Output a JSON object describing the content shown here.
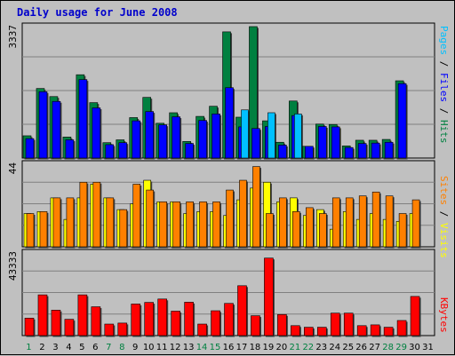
{
  "chart_data": [
    {
      "type": "bar",
      "title": "Daily usage for June 2008",
      "max_label": "3337",
      "ylim": [
        0,
        3337
      ],
      "series_labels": [
        "Pages",
        "Files",
        "Hits"
      ],
      "series_colors": {
        "Pages": "#00c0ff",
        "Files": "#0000ff",
        "Hits": "#008040"
      },
      "categories": [
        "1",
        "2",
        "3",
        "4",
        "5",
        "6",
        "7",
        "8",
        "9",
        "10",
        "11",
        "12",
        "13",
        "14",
        "15",
        "16",
        "17",
        "18",
        "19",
        "20",
        "21",
        "22",
        "23",
        "24",
        "25",
        "26",
        "27",
        "28",
        "29",
        "30",
        "31"
      ],
      "series": [
        {
          "name": "Hits",
          "values": [
            550,
            1720,
            1520,
            520,
            2060,
            1370,
            380,
            450,
            1000,
            1500,
            860,
            1120,
            410,
            1030,
            1280,
            3120,
            1010,
            3250,
            920,
            390,
            1410,
            290,
            840,
            830,
            300,
            440,
            440,
            460,
            1910,
            0,
            0
          ]
        },
        {
          "name": "Files",
          "values": [
            480,
            1640,
            1400,
            450,
            1940,
            1240,
            330,
            380,
            920,
            1150,
            820,
            1020,
            360,
            930,
            1090,
            1740,
            770,
            730,
            780,
            320,
            1050,
            290,
            780,
            770,
            260,
            360,
            370,
            390,
            1840,
            0,
            0
          ]
        },
        {
          "name": "Pages",
          "values": [
            0,
            0,
            0,
            0,
            0,
            0,
            0,
            0,
            0,
            0,
            0,
            0,
            0,
            0,
            0,
            0,
            1190,
            0,
            1120,
            0,
            1090,
            0,
            0,
            0,
            0,
            0,
            0,
            0,
            0,
            0,
            0
          ]
        }
      ]
    },
    {
      "type": "bar",
      "max_label": "44",
      "ylim": [
        0,
        44
      ],
      "series_labels": [
        "Sites",
        "Visits"
      ],
      "series_colors": {
        "Sites": "#ff8000",
        "Visits": "#ffff00"
      },
      "categories": [
        "1",
        "2",
        "3",
        "4",
        "5",
        "6",
        "7",
        "8",
        "9",
        "10",
        "11",
        "12",
        "13",
        "14",
        "15",
        "16",
        "17",
        "18",
        "19",
        "20",
        "21",
        "22",
        "23",
        "24",
        "25",
        "26",
        "27",
        "28",
        "29",
        "30",
        "31"
      ],
      "series": [
        {
          "name": "Visits",
          "values": [
            17,
            18,
            25,
            14,
            25,
            32,
            25,
            19,
            22,
            34,
            23,
            23,
            17,
            18,
            18,
            16,
            24,
            30,
            33,
            23,
            25,
            16,
            19,
            9,
            18,
            14,
            17,
            14,
            13,
            17,
            0
          ]
        },
        {
          "name": "Sites",
          "values": [
            17,
            18,
            25,
            25,
            33,
            33,
            25,
            19,
            32,
            29,
            23,
            23,
            23,
            23,
            23,
            29,
            34,
            41,
            17,
            25,
            18,
            20,
            17,
            25,
            25,
            26,
            28,
            26,
            17,
            24,
            0
          ]
        }
      ]
    },
    {
      "type": "bar",
      "max_label": "43333",
      "ylim": [
        0,
        43333
      ],
      "series_labels": [
        "KBytes"
      ],
      "series_colors": {
        "KBytes": "#ff0000"
      },
      "categories": [
        "1",
        "2",
        "3",
        "4",
        "5",
        "6",
        "7",
        "8",
        "9",
        "10",
        "11",
        "12",
        "13",
        "14",
        "15",
        "16",
        "17",
        "18",
        "19",
        "20",
        "21",
        "22",
        "23",
        "24",
        "25",
        "26",
        "27",
        "28",
        "29",
        "30",
        "31"
      ],
      "weekend_days": [
        "1",
        "7",
        "8",
        "14",
        "15",
        "21",
        "22",
        "28",
        "29"
      ],
      "series": [
        {
          "name": "KBytes",
          "values": [
            8800,
            20500,
            12800,
            8200,
            20500,
            14500,
            5800,
            6300,
            15900,
            16700,
            18400,
            12300,
            16800,
            5800,
            12500,
            16200,
            25100,
            10000,
            39000,
            10600,
            5000,
            4200,
            4200,
            11300,
            11300,
            5000,
            5400,
            4200,
            7600,
            19700,
            0
          ]
        }
      ]
    }
  ]
}
